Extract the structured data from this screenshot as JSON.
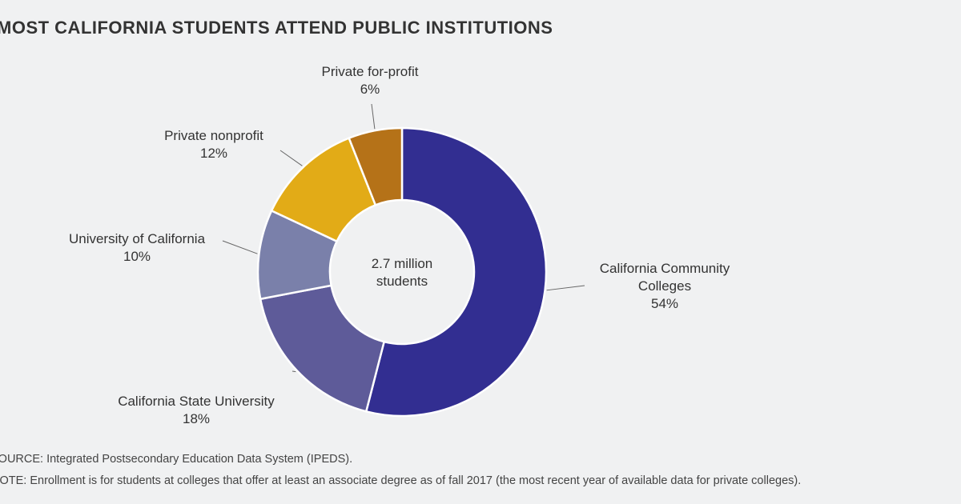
{
  "title": "MOST CALIFORNIA STUDENTS ATTEND PUBLIC INSTITUTIONS",
  "chart_data": {
    "type": "donut",
    "center_label": "2.7 million students",
    "categories": [
      "California Community Colleges",
      "California State University",
      "University of California",
      "Private nonprofit",
      "Private for-profit"
    ],
    "values": [
      54,
      18,
      10,
      12,
      6
    ],
    "value_labels": [
      "54%",
      "18%",
      "10%",
      "12%",
      "6%"
    ],
    "colors": [
      "#322e91",
      "#5e5b99",
      "#7a80aa",
      "#e2ab17",
      "#b57218"
    ]
  },
  "source": "SOURCE: Integrated Postsecondary Education Data System (IPEDS).",
  "note": "NOTE: Enrollment is for students at colleges that offer at least an associate degree as of fall 2017 (the most recent year of available data for private colleges)."
}
